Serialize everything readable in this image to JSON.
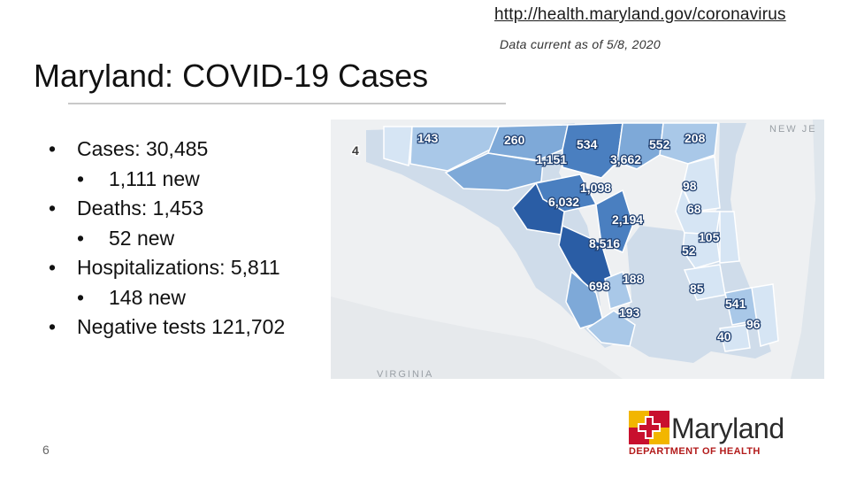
{
  "header": {
    "link": "http://health.maryland.gov/coronavirus",
    "current_note": "Data current as of 5/8, 2020",
    "title": "Maryland: COVID-19 Cases"
  },
  "stats": [
    {
      "level": 1,
      "text": "Cases: 30,485"
    },
    {
      "level": 2,
      "text": "1,111 new"
    },
    {
      "level": 1,
      "text": "Deaths: 1,453"
    },
    {
      "level": 2,
      "text": "52 new"
    },
    {
      "level": 1,
      "text": "Hospitalizations: 5,811"
    },
    {
      "level": 2,
      "text": "148 new"
    },
    {
      "level": 1,
      "text": "Negative tests 121,702"
    }
  ],
  "page_number": "6",
  "map": {
    "neighbor_labels": {
      "new_jersey": "NEW JE",
      "virginia": "VIRGINIA"
    },
    "county_counts": [
      "4",
      "143",
      "260",
      "534",
      "552",
      "208",
      "1,151",
      "3,662",
      "1,098",
      "98",
      "6,032",
      "2,194",
      "68",
      "8,516",
      "105",
      "52",
      "698",
      "188",
      "85",
      "193",
      "541",
      "96",
      "40"
    ],
    "colors": {
      "highest": "#2a5da5",
      "high": "#4a7fc0",
      "mid": "#7ea9d8",
      "low": "#a9c8e8",
      "lowest": "#d6e5f4",
      "background": "#eef0f2",
      "water": "#dfe6ec"
    }
  },
  "logo": {
    "wordmark": "Maryland",
    "subtitle": "DEPARTMENT OF HEALTH",
    "colors": {
      "red": "#c8102e",
      "gold": "#f2b600",
      "black": "#111111"
    }
  }
}
